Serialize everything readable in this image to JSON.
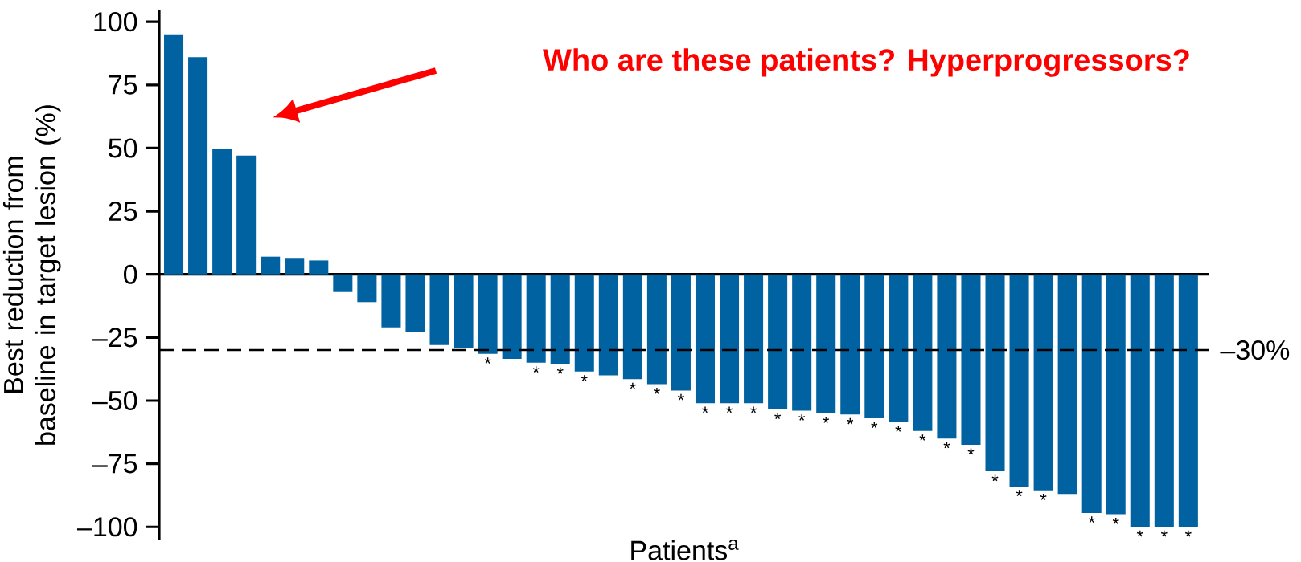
{
  "chart_data": {
    "type": "bar",
    "xlabel": "Patients$^{a}$",
    "ylabel": "Best reduction from baseline in target lesion (%)",
    "categories": [
      null,
      null,
      null,
      null,
      null,
      null,
      null,
      null,
      null,
      null,
      null,
      null,
      null,
      null,
      null,
      null,
      null,
      null,
      null,
      null,
      null,
      null,
      null,
      null,
      null,
      null,
      null,
      null,
      null,
      null,
      null,
      null,
      null,
      null,
      null,
      null,
      null,
      null,
      null,
      null,
      null,
      null,
      null
    ],
    "values": [
      95,
      86,
      49.5,
      47,
      7,
      6.5,
      5.5,
      -7,
      -11,
      -21,
      -23,
      -28,
      -29,
      -31.5,
      -33.5,
      -35,
      -35.5,
      -38.5,
      -40,
      -41.5,
      -43.5,
      -46,
      -51,
      -51,
      -51,
      -53.5,
      -54,
      -55,
      -55.5,
      -57,
      -58.5,
      -62,
      -65,
      -67.5,
      -78,
      -84,
      -85.5,
      -87,
      -94.5,
      -95,
      -100,
      -100,
      -100
    ],
    "value_labels": [
      null,
      null,
      null,
      null,
      null,
      null,
      null,
      null,
      null,
      null,
      null,
      null,
      null,
      "*",
      null,
      "*",
      "*",
      "*",
      null,
      "*",
      "*",
      "*",
      "*",
      "*",
      "*",
      "*",
      "*",
      "*",
      "*",
      "*",
      "*",
      "*",
      "*",
      "*",
      "*",
      "*",
      "*",
      null,
      "*",
      "*",
      "*",
      "*",
      "*"
    ],
    "color": "#0062a1",
    "ylim": [
      -105,
      104.5
    ],
    "yticks": [
      {
        "value": -100,
        "label": "–100"
      },
      {
        "value": -75,
        "label": "–75"
      },
      {
        "value": -50,
        "label": "–50"
      },
      {
        "value": -25,
        "label": "–25"
      },
      0,
      25,
      50,
      75,
      100
    ],
    "tick_labels": "y",
    "ref_lines": [
      {
        "axis": "y",
        "value": -30,
        "label": "–30%",
        "line_style": "dashed",
        "color": "#000000"
      }
    ],
    "annotations": [
      "Who are these patients? Hyperprogressors?"
    ]
  }
}
